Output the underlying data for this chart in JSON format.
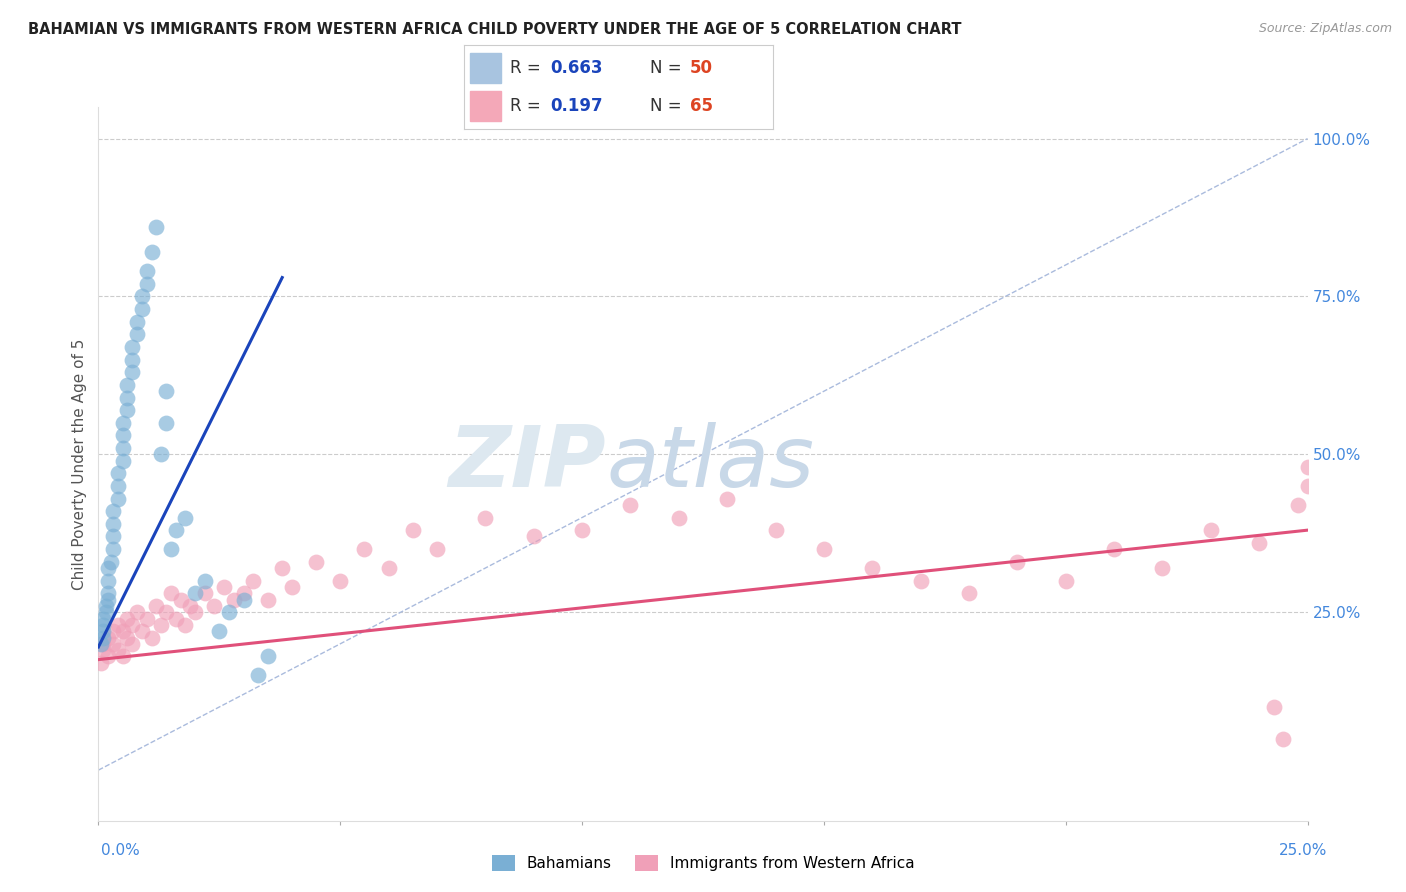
{
  "title": "BAHAMIAN VS IMMIGRANTS FROM WESTERN AFRICA CHILD POVERTY UNDER THE AGE OF 5 CORRELATION CHART",
  "source": "Source: ZipAtlas.com",
  "ylabel": "Child Poverty Under the Age of 5",
  "bahamians_color": "#7aafd4",
  "immigrants_color": "#f0a0b8",
  "blue_line_color": "#1a44bb",
  "pink_line_color": "#e0507a",
  "ref_line_color": "#aabbdd",
  "xmin": 0.0,
  "xmax": 0.25,
  "ymin": -0.08,
  "ymax": 1.05,
  "bahamians_x": [
    0.0005,
    0.001,
    0.001,
    0.001,
    0.001,
    0.0015,
    0.0015,
    0.002,
    0.002,
    0.002,
    0.002,
    0.0025,
    0.003,
    0.003,
    0.003,
    0.003,
    0.004,
    0.004,
    0.004,
    0.005,
    0.005,
    0.005,
    0.005,
    0.006,
    0.006,
    0.006,
    0.007,
    0.007,
    0.007,
    0.008,
    0.008,
    0.009,
    0.009,
    0.01,
    0.01,
    0.011,
    0.012,
    0.013,
    0.014,
    0.014,
    0.015,
    0.016,
    0.018,
    0.02,
    0.022,
    0.025,
    0.027,
    0.03,
    0.033,
    0.035
  ],
  "bahamians_y": [
    0.2,
    0.21,
    0.22,
    0.23,
    0.24,
    0.25,
    0.26,
    0.27,
    0.28,
    0.3,
    0.32,
    0.33,
    0.35,
    0.37,
    0.39,
    0.41,
    0.43,
    0.45,
    0.47,
    0.49,
    0.51,
    0.53,
    0.55,
    0.57,
    0.59,
    0.61,
    0.63,
    0.65,
    0.67,
    0.69,
    0.71,
    0.73,
    0.75,
    0.77,
    0.79,
    0.82,
    0.86,
    0.5,
    0.55,
    0.6,
    0.35,
    0.38,
    0.4,
    0.28,
    0.3,
    0.22,
    0.25,
    0.27,
    0.15,
    0.18
  ],
  "immigrants_x": [
    0.0005,
    0.001,
    0.001,
    0.002,
    0.002,
    0.003,
    0.003,
    0.004,
    0.004,
    0.005,
    0.005,
    0.006,
    0.006,
    0.007,
    0.007,
    0.008,
    0.009,
    0.01,
    0.011,
    0.012,
    0.013,
    0.014,
    0.015,
    0.016,
    0.017,
    0.018,
    0.019,
    0.02,
    0.022,
    0.024,
    0.026,
    0.028,
    0.03,
    0.032,
    0.035,
    0.038,
    0.04,
    0.045,
    0.05,
    0.055,
    0.06,
    0.065,
    0.07,
    0.08,
    0.09,
    0.1,
    0.11,
    0.12,
    0.13,
    0.14,
    0.15,
    0.16,
    0.17,
    0.18,
    0.19,
    0.2,
    0.21,
    0.22,
    0.23,
    0.24,
    0.243,
    0.245,
    0.248,
    0.25,
    0.25
  ],
  "immigrants_y": [
    0.17,
    0.19,
    0.2,
    0.18,
    0.21,
    0.2,
    0.22,
    0.19,
    0.23,
    0.18,
    0.22,
    0.21,
    0.24,
    0.2,
    0.23,
    0.25,
    0.22,
    0.24,
    0.21,
    0.26,
    0.23,
    0.25,
    0.28,
    0.24,
    0.27,
    0.23,
    0.26,
    0.25,
    0.28,
    0.26,
    0.29,
    0.27,
    0.28,
    0.3,
    0.27,
    0.32,
    0.29,
    0.33,
    0.3,
    0.35,
    0.32,
    0.38,
    0.35,
    0.4,
    0.37,
    0.38,
    0.42,
    0.4,
    0.43,
    0.38,
    0.35,
    0.32,
    0.3,
    0.28,
    0.33,
    0.3,
    0.35,
    0.32,
    0.38,
    0.36,
    0.1,
    0.05,
    0.42,
    0.45,
    0.48
  ],
  "blue_line_x": [
    0.0,
    0.038
  ],
  "blue_line_y": [
    0.195,
    0.78
  ],
  "pink_line_x": [
    0.0,
    0.25
  ],
  "pink_line_y": [
    0.175,
    0.38
  ],
  "ref_line_x": [
    0.0,
    0.25
  ],
  "ref_line_y": [
    0.0,
    1.0
  ]
}
